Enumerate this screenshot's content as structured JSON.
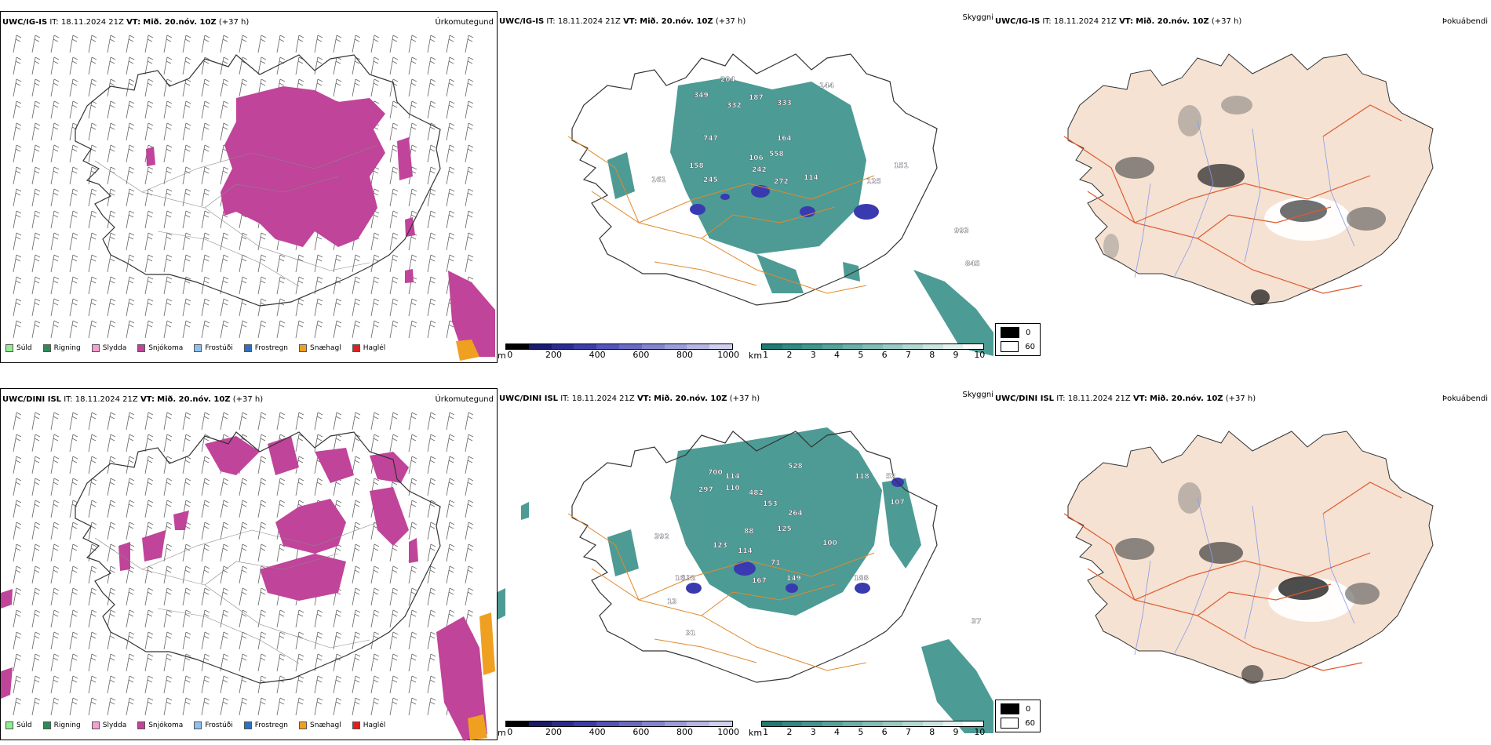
{
  "rows": [
    {
      "model": "UWC/IG-IS",
      "it_label": "IT:",
      "it_value": "18.11.2024 21Z",
      "vt_label": "VT:",
      "vt_value": "Mið. 20.nóv. 10Z",
      "lead": "(+37 h)",
      "ceiling_labels": [
        "349",
        "204",
        "187",
        "332",
        "333",
        "144",
        "747",
        "164",
        "106",
        "558",
        "158",
        "242",
        "161",
        "245",
        "272",
        "114",
        "125",
        "151",
        "993",
        "845"
      ],
      "legend": {
        "mask_top": "0",
        "mask_bottom": "60"
      }
    },
    {
      "model": "UWC/DINI ISL",
      "it_label": "IT:",
      "it_value": "18.11.2024 21Z",
      "vt_label": "VT:",
      "vt_value": "Mið. 20.nóv. 10Z",
      "lead": "(+37 h)",
      "ceiling_labels": [
        "700",
        "114",
        "297",
        "110",
        "482",
        "528",
        "118",
        "52",
        "153",
        "264",
        "107",
        "392",
        "125",
        "88",
        "123",
        "114",
        "71",
        "132",
        "167",
        "149",
        "100",
        "188",
        "13",
        "16",
        "31",
        "37"
      ],
      "legend": {
        "mask_top": "0",
        "mask_bottom": "60"
      }
    }
  ],
  "titles": {
    "precip_type": "Úrkomutegund",
    "visibility": "Skyggni",
    "fog": "Þokuábendi"
  },
  "precip_legend": [
    {
      "label": "Súld",
      "color": "#90ee90"
    },
    {
      "label": "Rigning",
      "color": "#2e8b57"
    },
    {
      "label": "Slydda",
      "color": "#f4a0d0"
    },
    {
      "label": "Snjókoma",
      "color": "#c0449a"
    },
    {
      "label": "Frostúði",
      "color": "#90c0f0"
    },
    {
      "label": "Frostregn",
      "color": "#3070c0"
    },
    {
      "label": "Snæhagl",
      "color": "#f0a020"
    },
    {
      "label": "Haglél",
      "color": "#e02020"
    }
  ],
  "ceiling_scale": {
    "unit": "m",
    "ticks": [
      "0",
      "200",
      "400",
      "600",
      "800",
      "1000"
    ],
    "colors": [
      "#000000",
      "#1a1a6e",
      "#2b2b8f",
      "#3c3ca6",
      "#5353b8",
      "#6a6ac4",
      "#8484cf",
      "#9c9cd9",
      "#b5b5e3",
      "#cfcfee"
    ]
  },
  "visibility_scale": {
    "unit": "km",
    "ticks": [
      "1",
      "2",
      "3",
      "4",
      "5",
      "6",
      "7",
      "8",
      "9",
      "10"
    ],
    "colors": [
      "#1e7a72",
      "#2e8a82",
      "#3e968e",
      "#54a39b",
      "#6aafa8",
      "#82bcb5",
      "#9ac9c3",
      "#b2d6d1",
      "#cbe4df",
      "#e4f1ef",
      "#ffffff"
    ]
  },
  "colors": {
    "snow": "#c0449a",
    "hail": "#f0a020",
    "vis": "#2e8a82",
    "ceiling": "#3a3ab0",
    "roads": "#e08a2c",
    "land_fog": "#f5e2d2",
    "fog_roads": "#e05a30",
    "rivers": "#8899ee"
  }
}
